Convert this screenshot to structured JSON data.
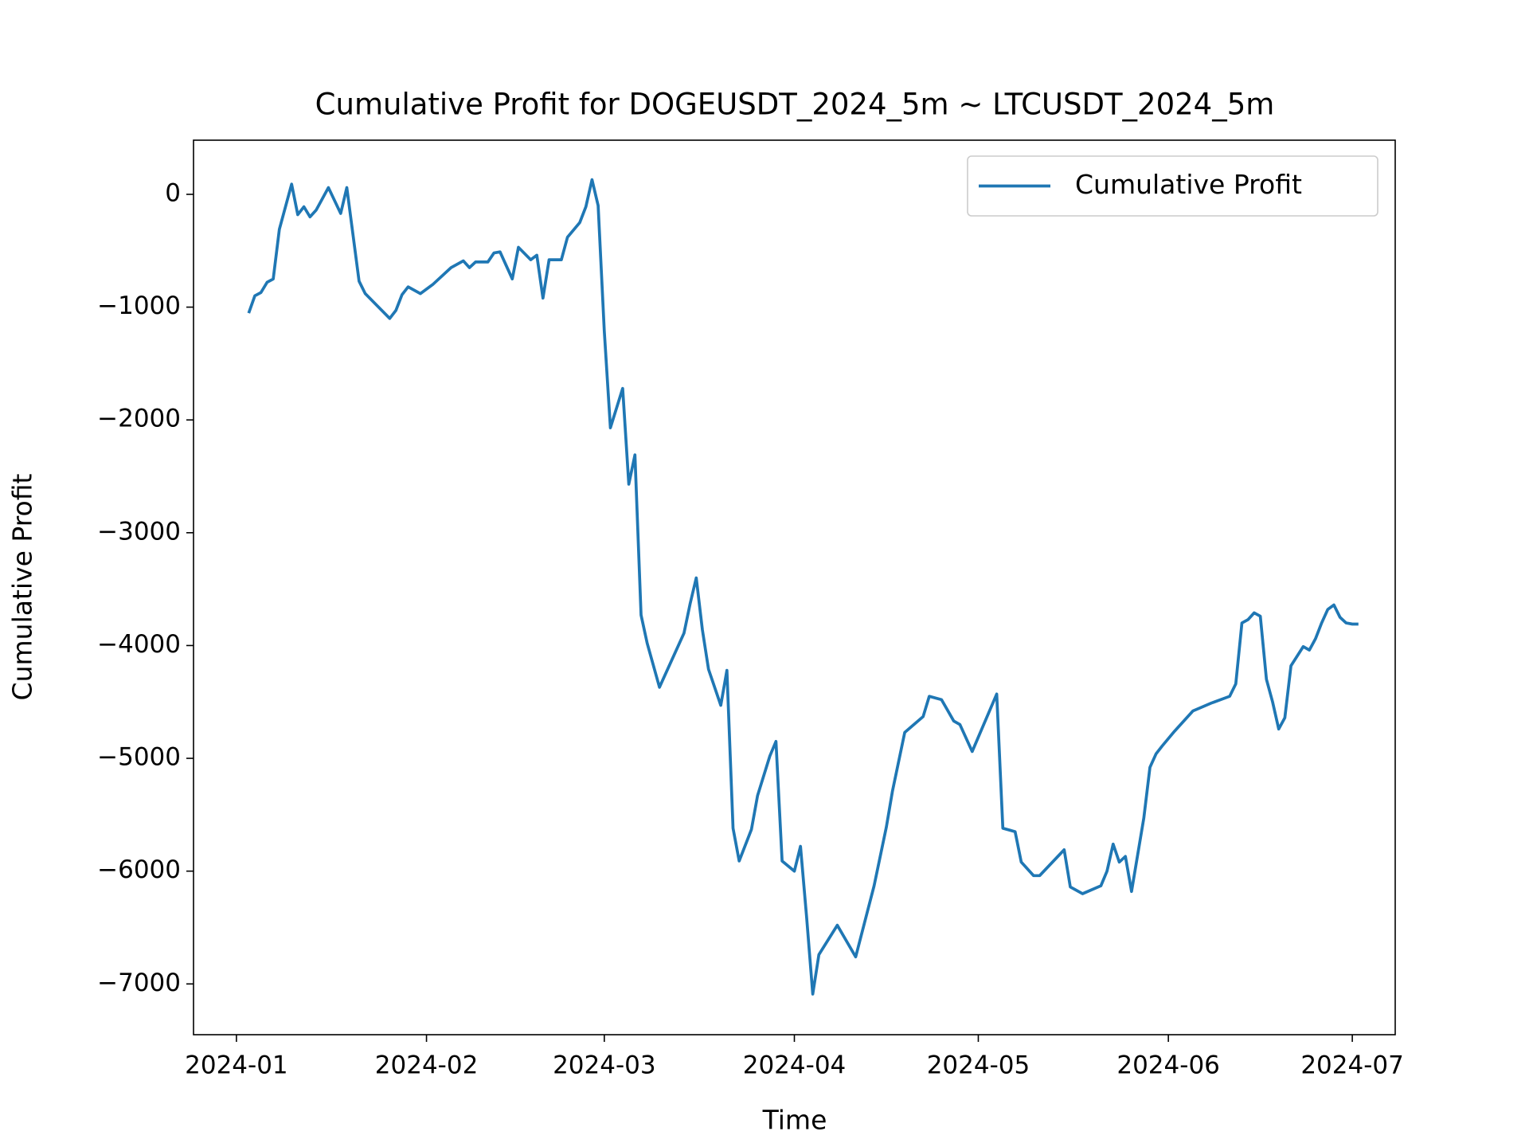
{
  "chart_data": {
    "type": "line",
    "title": "Cumulative Profit for DOGEUSDT_2024_5m ~ LTCUSDT_2024_5m",
    "xlabel": "Time",
    "ylabel": "Cumulative Profit",
    "x": [
      "2024-01-03",
      "2024-01-04",
      "2024-01-05",
      "2024-01-06",
      "2024-01-07",
      "2024-01-08",
      "2024-01-10",
      "2024-01-11",
      "2024-01-12",
      "2024-01-13",
      "2024-01-14",
      "2024-01-16",
      "2024-01-18",
      "2024-01-19",
      "2024-01-21",
      "2024-01-22",
      "2024-01-26",
      "2024-01-27",
      "2024-01-28",
      "2024-01-29",
      "2024-01-31",
      "2024-02-02",
      "2024-02-05",
      "2024-02-07",
      "2024-02-08",
      "2024-02-09",
      "2024-02-11",
      "2024-02-12",
      "2024-02-13",
      "2024-02-15",
      "2024-02-16",
      "2024-02-18",
      "2024-02-19",
      "2024-02-20",
      "2024-02-21",
      "2024-02-23",
      "2024-02-24",
      "2024-02-26",
      "2024-02-27",
      "2024-02-28",
      "2024-02-29",
      "2024-03-01",
      "2024-03-02",
      "2024-03-04",
      "2024-03-05",
      "2024-03-06",
      "2024-03-07",
      "2024-03-08",
      "2024-03-10",
      "2024-03-14",
      "2024-03-15",
      "2024-03-16",
      "2024-03-17",
      "2024-03-18",
      "2024-03-20",
      "2024-03-21",
      "2024-03-22",
      "2024-03-23",
      "2024-03-25",
      "2024-03-26",
      "2024-03-28",
      "2024-03-29",
      "2024-03-30",
      "2024-04-01",
      "2024-04-02",
      "2024-04-03",
      "2024-04-04",
      "2024-04-05",
      "2024-04-08",
      "2024-04-11",
      "2024-04-14",
      "2024-04-16",
      "2024-04-17",
      "2024-04-19",
      "2024-04-22",
      "2024-04-23",
      "2024-04-25",
      "2024-04-27",
      "2024-04-28",
      "2024-04-30",
      "2024-05-04",
      "2024-05-05",
      "2024-05-07",
      "2024-05-08",
      "2024-05-10",
      "2024-05-11",
      "2024-05-15",
      "2024-05-16",
      "2024-05-18",
      "2024-05-21",
      "2024-05-22",
      "2024-05-23",
      "2024-05-24",
      "2024-05-25",
      "2024-05-26",
      "2024-05-28",
      "2024-05-29",
      "2024-05-30",
      "2024-05-31",
      "2024-06-02",
      "2024-06-05",
      "2024-06-08",
      "2024-06-11",
      "2024-06-12",
      "2024-06-13",
      "2024-06-14",
      "2024-06-15",
      "2024-06-16",
      "2024-06-17",
      "2024-06-18",
      "2024-06-19",
      "2024-06-20",
      "2024-06-21",
      "2024-06-23",
      "2024-06-24",
      "2024-06-25",
      "2024-06-26",
      "2024-06-27",
      "2024-06-28",
      "2024-06-29",
      "2024-06-30",
      "2024-07-01",
      "2024-07-02"
    ],
    "series": [
      {
        "name": "Cumulative Profit",
        "color": "#1f77b4",
        "values": [
          -1053,
          -900,
          -870,
          -780,
          -750,
          -310,
          90,
          -180,
          -110,
          -200,
          -140,
          60,
          -170,
          60,
          -770,
          -880,
          -1100,
          -1030,
          -890,
          -820,
          -880,
          -800,
          -650,
          -590,
          -650,
          -600,
          -600,
          -520,
          -510,
          -750,
          -470,
          -580,
          -540,
          -920,
          -580,
          -580,
          -380,
          -250,
          -110,
          130,
          -100,
          -1210,
          -2070,
          -1720,
          -2570,
          -2310,
          -3730,
          -3980,
          -4370,
          -3890,
          -3630,
          -3400,
          -3860,
          -4210,
          -4530,
          -4220,
          -5620,
          -5910,
          -5630,
          -5330,
          -4980,
          -4850,
          -5910,
          -6000,
          -5780,
          -6410,
          -7090,
          -6740,
          -6480,
          -6760,
          -6130,
          -5610,
          -5290,
          -4770,
          -4630,
          -4450,
          -4480,
          -4670,
          -4700,
          -4940,
          -4430,
          -5620,
          -5650,
          -5920,
          -6040,
          -6040,
          -5810,
          -6140,
          -6200,
          -6130,
          -6000,
          -5760,
          -5920,
          -5870,
          -6180,
          -5530,
          -5080,
          -4960,
          -4890,
          -4760,
          -4580,
          -4510,
          -4450,
          -4340,
          -3800,
          -3770,
          -3710,
          -3740,
          -4300,
          -4500,
          -4740,
          -4640,
          -4180,
          -4010,
          -4040,
          -3940,
          -3800,
          -3680,
          -3640,
          -3750,
          -3800,
          -3810,
          -3810
        ]
      }
    ],
    "xlim": [
      "2023-12-25",
      "2024-07-08"
    ],
    "xticks": [
      "2024-01",
      "2024-02",
      "2024-03",
      "2024-04",
      "2024-05",
      "2024-06",
      "2024-07"
    ],
    "ylim": [
      -7450,
      480
    ],
    "yticks": [
      {
        "value": -7000,
        "label": "−7000"
      },
      {
        "value": -6000,
        "label": "−6000"
      },
      {
        "value": -5000,
        "label": "−5000"
      },
      {
        "value": -4000,
        "label": "−4000"
      },
      {
        "value": -3000,
        "label": "−3000"
      },
      {
        "value": -2000,
        "label": "−2000"
      },
      {
        "value": -1000,
        "label": "−1000"
      },
      0
    ],
    "legend": "upper right",
    "grid": false
  }
}
